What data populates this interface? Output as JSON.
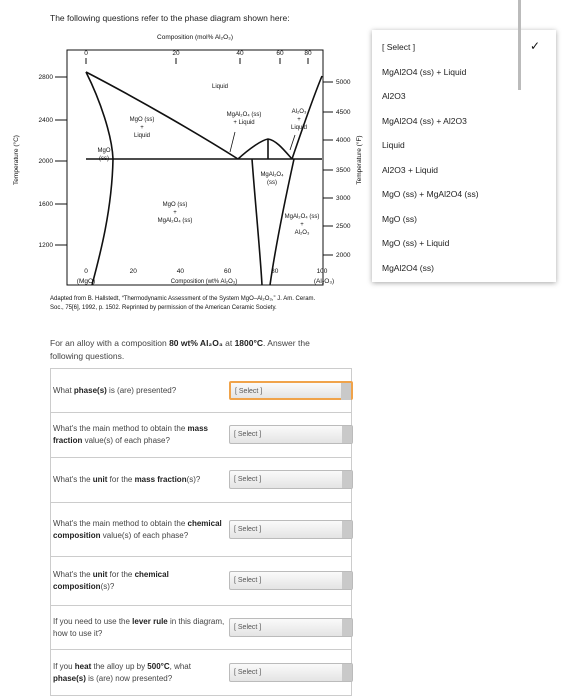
{
  "intro": "The following questions refer to the phase diagram shown here:",
  "diagram": {
    "top_axis_title": "Composition (mol% Al₂O₃)",
    "top_ticks": [
      "0",
      "20",
      "40",
      "60",
      "80"
    ],
    "left_ticks": [
      "2800",
      "2400",
      "2000",
      "1600",
      "1200"
    ],
    "left_axis_title": "Temperature (°C)",
    "right_ticks": [
      "5000",
      "4500",
      "4000",
      "3500",
      "3000",
      "2500",
      "2000"
    ],
    "right_axis_title": "Temperature (°F)",
    "bottom_ticks": [
      "0",
      "20",
      "40",
      "60",
      "80",
      "100"
    ],
    "bottom_end_labels": [
      "(MgO)",
      "(Al₂O₃)"
    ],
    "bottom_axis_title": "Composition (wt% Al₂O₃)",
    "regions": [
      [
        "Liquid"
      ],
      [
        "MgO (ss)",
        "+",
        "Liquid"
      ],
      [
        "MgAl₂O₄ (ss)",
        "+ Liquid"
      ],
      [
        "Al₂O₃",
        "+",
        "Liquid"
      ],
      [
        "MgO",
        "(ss)"
      ],
      [
        "MgAl₂O₄",
        "(ss)"
      ],
      [
        "MgO (ss)",
        "+",
        "MgAl₂O₄ (ss)"
      ],
      [
        "MgAl₂O₄ (ss)",
        "+",
        "Al₂O₃"
      ]
    ],
    "caption": [
      "Adapted from B. Hallstedt, “Thermodynamic Assessment of the System MgO–Al₂O₃,” J. Am. Ceram.",
      "Soc., 75[6], 1992, p. 1502. Reprinted by permission of the American Ceramic Society."
    ]
  },
  "prompt": [
    "For an alloy with a composition ",
    "80 wt% Al₂O₃",
    " at ",
    "1800°C",
    ". Answer the following questions."
  ],
  "questions": [
    {
      "text": [
        "What ",
        "phase(s)",
        " is (are) presented?"
      ],
      "select": "[ Select ]"
    },
    {
      "text": [
        "What's the main method to obtain the ",
        "mass fraction",
        " value(s) of each phase?"
      ],
      "select": "[ Select ]"
    },
    {
      "text": [
        "What's the ",
        "unit",
        " for the ",
        "mass fraction",
        "(s)?"
      ],
      "select": "[ Select ]"
    },
    {
      "text": [
        "What's the main method to obtain the ",
        "chemical composition",
        " value(s) of each phase?"
      ],
      "select": "[ Select ]"
    },
    {
      "text": [
        "What's the ",
        "unit",
        " for the ",
        "chemical composition",
        "(s)?"
      ],
      "select": "[ Select ]"
    },
    {
      "text": [
        "If you need to use the ",
        "lever rule",
        " in this diagram, how to use it?"
      ],
      "select": "[ Select ]"
    },
    {
      "text": [
        "If you ",
        "heat",
        " the alloy up by ",
        "500°C",
        ", what ",
        "phase(s)",
        " is (are) now presented?"
      ],
      "select": "[ Select ]"
    }
  ],
  "dropdown": {
    "check": "✓",
    "options": [
      "[ Select ]",
      "MgAl2O4 (ss) + Liquid",
      "Al2O3",
      "MgAl2O4 (ss) + Al2O3",
      "Liquid",
      "Al2O3 + Liquid",
      "MgO (ss) + MgAl2O4 (ss)",
      "MgO (ss)",
      "MgO (ss) + Liquid",
      "MgAl2O4 (ss)"
    ]
  }
}
